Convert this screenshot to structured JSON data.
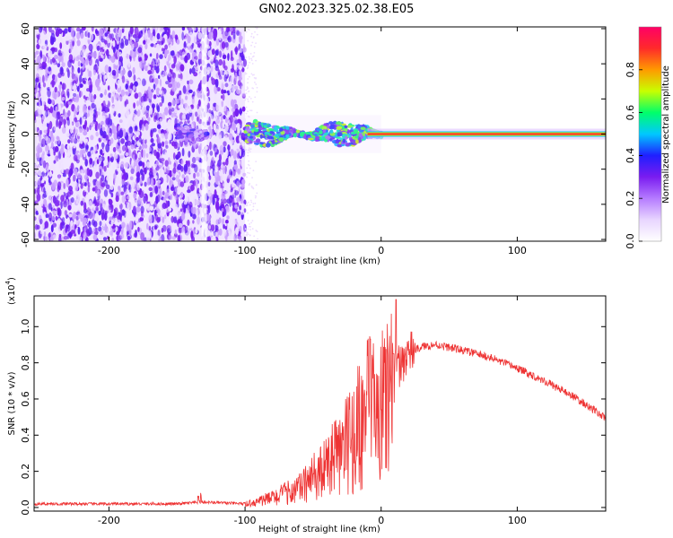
{
  "title": "GN02.2023.325.02.38.E05",
  "chart_data": [
    {
      "type": "heatmap",
      "name": "spectrogram",
      "xlabel": "Height of straight line (km)",
      "ylabel": "Frequency (Hz)",
      "xlim": [
        -255,
        165
      ],
      "ylim": [
        -61,
        61
      ],
      "xticks": [
        -200,
        -100,
        0,
        100
      ],
      "xtick_labels": [
        "-200",
        "-100",
        "0",
        "100"
      ],
      "yticks": [
        -60,
        -40,
        -20,
        0,
        20,
        40,
        60
      ],
      "ytick_labels": [
        "-60",
        "-40",
        "-20",
        "0",
        "20",
        "40",
        "60"
      ],
      "colorbar": {
        "label": "Normalized spectral amplitude",
        "range": [
          0,
          1
        ],
        "ticks": [
          0.0,
          0.2,
          0.4,
          0.6,
          0.8
        ],
        "tick_labels": [
          "0.0",
          "0.2",
          "0.4",
          "0.6",
          "0.8"
        ],
        "stops": [
          "#ffffff",
          "#e8d5ff",
          "#b57bff",
          "#7a1cf0",
          "#1f1fff",
          "#00c8ff",
          "#00ff6a",
          "#c8ff00",
          "#ff9a00",
          "#ff2a2a",
          "#ff0066"
        ]
      },
      "regions": [
        {
          "name": "noise",
          "x_range": [
            -255,
            -100
          ],
          "y_range": [
            -61,
            61
          ],
          "amplitude": 0.15
        },
        {
          "name": "early-signal",
          "x_range": [
            -150,
            -128
          ],
          "y_range": [
            -4,
            4
          ],
          "amplitude": 0.3
        },
        {
          "name": "turbulent-signal",
          "x_range": [
            -100,
            0
          ],
          "y_range": [
            -6,
            6
          ],
          "amplitude": 0.55
        },
        {
          "name": "steady-line",
          "x_range": [
            -10,
            165
          ],
          "y_range": [
            -1.5,
            1.5
          ],
          "amplitude": 0.95
        }
      ]
    },
    {
      "type": "line",
      "name": "snr",
      "xlabel": "Height of straight line (km)",
      "ylabel": "SNR (10 * v/v)",
      "multiplier_label": "(x10",
      "multiplier_exp": "4",
      "xlim": [
        -255,
        165
      ],
      "ylim": [
        -0.02,
        1.17
      ],
      "xticks": [
        -200,
        -100,
        0,
        100
      ],
      "xtick_labels": [
        "-200",
        "-100",
        "0",
        "100"
      ],
      "yticks": [
        0.0,
        0.2,
        0.4,
        0.6,
        0.8,
        1.0
      ],
      "ytick_labels": [
        "0.0",
        "0.2",
        "0.4",
        "0.6",
        "0.8",
        "1.0"
      ],
      "color": "#ee3333",
      "series_profile": {
        "x": [
          -255,
          -200,
          -150,
          -130,
          -100,
          -80,
          -60,
          -40,
          -20,
          -10,
          0,
          10,
          20,
          30,
          40,
          60,
          80,
          100,
          120,
          140,
          160,
          165
        ],
        "y": [
          0.02,
          0.02,
          0.02,
          0.03,
          0.02,
          0.06,
          0.12,
          0.25,
          0.45,
          0.6,
          0.62,
          0.75,
          0.85,
          0.89,
          0.9,
          0.87,
          0.83,
          0.77,
          0.7,
          0.62,
          0.52,
          0.49
        ]
      },
      "peaks": [
        {
          "x": 11,
          "y": 1.15
        },
        {
          "x": -8,
          "y": 0.93
        },
        {
          "x": 9,
          "y": 0.85
        }
      ]
    }
  ]
}
